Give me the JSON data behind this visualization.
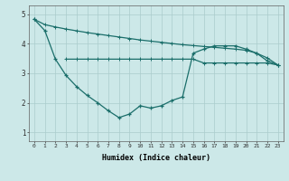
{
  "xlabel": "Humidex (Indice chaleur)",
  "background_color": "#cce8e8",
  "grid_color": "#aacccc",
  "line_color": "#1a6e6a",
  "xlim": [
    -0.5,
    23.5
  ],
  "ylim": [
    0.7,
    5.3
  ],
  "yticks": [
    1,
    2,
    3,
    4,
    5
  ],
  "xticks": [
    0,
    1,
    2,
    3,
    4,
    5,
    6,
    7,
    8,
    9,
    10,
    11,
    12,
    13,
    14,
    15,
    16,
    17,
    18,
    19,
    20,
    21,
    22,
    23
  ],
  "line1_x": [
    0,
    1,
    2,
    3,
    4,
    5,
    6,
    7,
    8,
    9,
    10,
    11,
    12,
    13,
    14,
    15,
    16,
    17,
    18,
    19,
    20,
    21,
    22,
    23
  ],
  "line1_y": [
    4.83,
    4.65,
    4.57,
    4.5,
    4.44,
    4.38,
    4.33,
    4.28,
    4.23,
    4.18,
    4.13,
    4.09,
    4.05,
    4.01,
    3.97,
    3.94,
    3.91,
    3.88,
    3.85,
    3.82,
    3.78,
    3.68,
    3.52,
    3.28
  ],
  "line2_x": [
    0,
    1,
    2,
    3,
    4,
    5,
    6,
    7,
    8,
    9,
    10,
    11,
    12,
    13,
    14,
    15,
    16,
    17,
    18,
    19,
    20,
    21,
    22,
    23
  ],
  "line2_y": [
    4.83,
    4.45,
    3.48,
    2.93,
    2.55,
    2.25,
    2.0,
    1.73,
    1.5,
    1.62,
    1.9,
    1.82,
    1.9,
    2.08,
    2.2,
    3.68,
    3.82,
    3.93,
    3.93,
    3.93,
    3.82,
    3.68,
    3.42,
    3.28
  ],
  "line3_x": [
    3,
    4,
    5,
    6,
    7,
    8,
    9,
    10,
    11,
    12,
    13,
    14,
    15,
    16,
    17,
    18,
    19,
    20,
    21,
    22,
    23
  ],
  "line3_y": [
    3.48,
    3.48,
    3.48,
    3.48,
    3.48,
    3.48,
    3.48,
    3.48,
    3.48,
    3.48,
    3.48,
    3.48,
    3.48,
    3.35,
    3.35,
    3.35,
    3.35,
    3.35,
    3.35,
    3.35,
    3.28
  ]
}
